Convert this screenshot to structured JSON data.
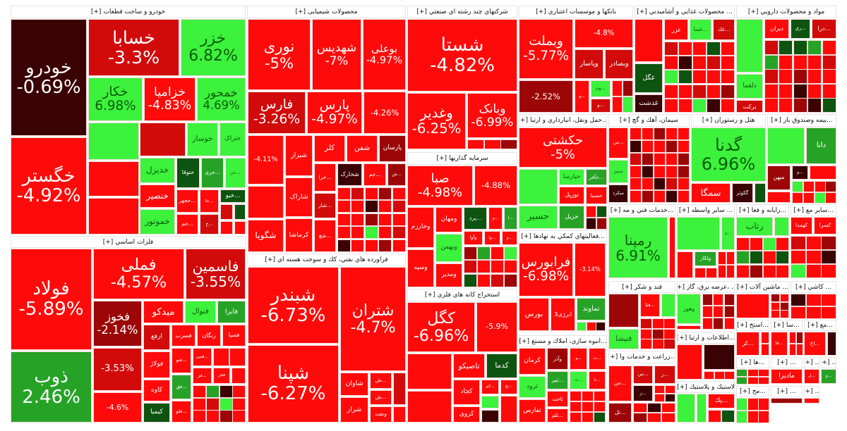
{
  "colors": {
    "R": "#ff0a0a",
    "r": "#d20a0a",
    "d": "#9c0606",
    "k": "#3a0202",
    "G": "#3cf23c",
    "g": "#26a326",
    "D": "#0d5410"
  },
  "expand_label": "[+]",
  "sectors": [
    {
      "id": "auto",
      "title": "خودرو و ساخت قطعات",
      "tiles": [
        {
          "name": "خودرو",
          "change": "-0.69%",
          "color": "k"
        },
        {
          "name": "خگستر",
          "change": "-4.92%",
          "color": "R"
        },
        {
          "name": "خسابا",
          "change": "-3.3%",
          "color": "r"
        },
        {
          "name": "خزر",
          "change": "6.82%",
          "color": "G"
        },
        {
          "name": "خکار",
          "change": "6.98%",
          "color": "G"
        },
        {
          "name": "خزامیا",
          "change": "-4.83%",
          "color": "R"
        },
        {
          "name": "خمحور",
          "change": "4.69%",
          "color": "G"
        },
        {
          "name": "خوساز",
          "change": "",
          "color": "G"
        },
        {
          "name": "ختراک",
          "change": "",
          "color": "G"
        },
        {
          "name": "خدیزل",
          "change": "",
          "color": "G"
        },
        {
          "name": "ختوقا",
          "change": "",
          "color": "D"
        },
        {
          "name": "...خری",
          "change": "",
          "color": "g"
        },
        {
          "name": "...خر",
          "change": "",
          "color": "G"
        },
        {
          "name": "خنصیر",
          "change": "",
          "color": "R"
        },
        {
          "name": "خموتور",
          "change": "",
          "color": "G"
        },
        {
          "name": "...خجهر",
          "change": "",
          "color": "R"
        },
        {
          "name": "...خا",
          "change": "",
          "color": "R"
        },
        {
          "name": "...خبو",
          "change": "",
          "color": "D"
        },
        {
          "name": "...خم",
          "change": "",
          "color": "R"
        },
        {
          "name": "...خ",
          "change": "",
          "color": "r"
        }
      ]
    },
    {
      "id": "chem",
      "title": "محصولات شیمیایی",
      "tiles": [
        {
          "name": "نوری",
          "change": "-5%",
          "color": "R"
        },
        {
          "name": "شهدیس",
          "change": "-7%",
          "color": "R"
        },
        {
          "name": "بوعلی",
          "change": "-4.97%",
          "color": "R"
        },
        {
          "name": "فارس",
          "change": "-3.26%",
          "color": "r"
        },
        {
          "name": "پارس",
          "change": "-4.97%",
          "color": "R"
        },
        {
          "name": "",
          "change": "-4.26%",
          "color": "R"
        },
        {
          "name": "",
          "change": "-4.11%",
          "color": "R"
        },
        {
          "name": "شگویا",
          "change": "",
          "color": "R"
        },
        {
          "name": "شیراز",
          "change": "",
          "color": "R"
        },
        {
          "name": "شاراک",
          "change": "",
          "color": "R"
        },
        {
          "name": "کرماشا",
          "change": "",
          "color": "R"
        },
        {
          "name": "کلر",
          "change": "",
          "color": "R"
        },
        {
          "name": "شفن",
          "change": "",
          "color": "R"
        },
        {
          "name": "پارسان",
          "change": "",
          "color": "d"
        },
        {
          "name": "...خرا",
          "change": "",
          "color": "R"
        },
        {
          "name": "شخارک",
          "change": "",
          "color": "k"
        },
        {
          "name": "...جم",
          "change": "",
          "color": "R"
        },
        {
          "name": "...ش",
          "change": "",
          "color": "d"
        },
        {
          "name": "...شار",
          "change": "",
          "color": "r"
        },
        {
          "name": "...شغ",
          "change": "",
          "color": "R"
        }
      ]
    },
    {
      "id": "refine",
      "title": "فراورده هاي نفتي، كك و سوخت هسته اي",
      "tiles": [
        {
          "name": "شبندر",
          "change": "-6.73%",
          "color": "R"
        },
        {
          "name": "شپنا",
          "change": "-6.27%",
          "color": "R"
        },
        {
          "name": "شتران",
          "change": "-4.7%",
          "color": "R"
        },
        {
          "name": "شاوان",
          "change": "",
          "color": "R"
        },
        {
          "name": "شراز",
          "change": "",
          "color": "R"
        },
        {
          "name": "...ش",
          "change": "",
          "color": "R"
        },
        {
          "name": "...ش",
          "change": "",
          "color": "R"
        },
        {
          "name": "ونفت",
          "change": "",
          "color": "R"
        }
      ]
    },
    {
      "id": "metals",
      "title": "فلزات اساسي",
      "tiles": [
        {
          "name": "فولاد",
          "change": "-5.89%",
          "color": "R"
        },
        {
          "name": "ذوب",
          "change": "2.46%",
          "color": "g"
        },
        {
          "name": "فملی",
          "change": "-4.57%",
          "color": "R"
        },
        {
          "name": "فاسمین",
          "change": "-3.55%",
          "color": "r"
        },
        {
          "name": "میدکو",
          "change": "",
          "color": "R"
        },
        {
          "name": "فنوال",
          "change": "",
          "color": "G"
        },
        {
          "name": "فایرا",
          "change": "",
          "color": "g"
        },
        {
          "name": "فخوز",
          "change": "-2.14%",
          "color": "d"
        },
        {
          "name": "",
          "change": "-3.53%",
          "color": "r"
        },
        {
          "name": "",
          "change": "-4.6%",
          "color": "R"
        },
        {
          "name": "ارفع",
          "change": "",
          "color": "r"
        },
        {
          "name": "فسرب",
          "change": "",
          "color": "R"
        },
        {
          "name": "زنگان",
          "change": "",
          "color": "R"
        },
        {
          "name": "فسپا",
          "change": "",
          "color": "R"
        },
        {
          "name": "فولاژ",
          "change": "",
          "color": "R"
        },
        {
          "name": "کاوه",
          "change": "",
          "color": "R"
        },
        {
          "name": "کیمیا",
          "change": "",
          "color": "D"
        },
        {
          "name": "...فنو",
          "change": "",
          "color": "R"
        },
        {
          "name": "...فق",
          "change": "",
          "color": "g"
        },
        {
          "name": "...فلو",
          "change": "",
          "color": "R"
        },
        {
          "name": "...فمی",
          "change": "",
          "color": "R"
        },
        {
          "name": "...فز",
          "change": "",
          "color": "R"
        },
        {
          "name": "فجر",
          "change": "",
          "color": "R"
        }
      ]
    },
    {
      "id": "multi",
      "title": "شرکتهاي چند رشته اي صنعتي",
      "tiles": [
        {
          "name": "شستا",
          "change": "-4.82%",
          "color": "R"
        },
        {
          "name": "وغدیر",
          "change": "-6.25%",
          "color": "R"
        },
        {
          "name": "وبانک",
          "change": "-6.99%",
          "color": "R"
        }
      ]
    },
    {
      "id": "invest",
      "title": "سرمايه گذاريها",
      "tiles": [
        {
          "name": "صبا",
          "change": "-4.98%",
          "color": "R"
        },
        {
          "name": "",
          "change": "-4.88%",
          "color": "R"
        },
        {
          "name": "وخارزم",
          "change": "",
          "color": "R"
        },
        {
          "name": "وسپه",
          "change": "",
          "color": "R"
        },
        {
          "name": "ومهان",
          "change": "",
          "color": "R"
        },
        {
          "name": "وبهمن",
          "change": "",
          "color": "G"
        },
        {
          "name": "ومدیر",
          "change": "",
          "color": "R"
        },
        {
          "name": "...پرد",
          "change": "",
          "color": "D"
        },
        {
          "name": "...و",
          "change": "",
          "color": "R"
        },
        {
          "name": "...ا",
          "change": "",
          "color": "g"
        },
        {
          "name": "وآوا",
          "change": "",
          "color": "R"
        },
        {
          "name": "...وا",
          "change": "",
          "color": "R"
        },
        {
          "name": "...و",
          "change": "",
          "color": "R"
        }
      ]
    },
    {
      "id": "mining",
      "title": "استخراج كانه هاي فلزي",
      "tiles": [
        {
          "name": "کگل",
          "change": "-6.96%",
          "color": "R"
        },
        {
          "name": "",
          "change": "-5.9%",
          "color": "R"
        },
        {
          "name": "تاصیکو",
          "change": "",
          "color": "R"
        },
        {
          "name": "کدما",
          "change": "",
          "color": "D"
        },
        {
          "name": "کچاد",
          "change": "",
          "color": "R"
        },
        {
          "name": "کروی",
          "change": "",
          "color": "R"
        },
        {
          "name": "...کم",
          "change": "",
          "color": "R"
        },
        {
          "name": "...نج",
          "change": "",
          "color": "R"
        }
      ]
    },
    {
      "id": "bank",
      "title": "بانكها و موسسات اعتباري",
      "tiles": [
        {
          "name": "وبملت",
          "change": "-5.77%",
          "color": "R"
        },
        {
          "name": "",
          "change": "-4.8%",
          "color": "R"
        },
        {
          "name": "وپاسار",
          "change": "",
          "color": "r"
        },
        {
          "name": "وبصادر",
          "change": "",
          "color": "r"
        },
        {
          "name": "",
          "change": "-2.52%",
          "color": "d"
        },
        {
          "name": "...و",
          "change": "",
          "color": "R"
        },
        {
          "name": "...وم",
          "change": "",
          "color": "G"
        },
        {
          "name": "...و",
          "change": "",
          "color": "r"
        }
      ]
    },
    {
      "id": "food",
      "title": "... محصولات غذايي و آشاميدني",
      "tiles": [
        {
          "name": "غگل",
          "change": "",
          "color": "D"
        },
        {
          "name": "غدشت",
          "change": "",
          "color": "k"
        },
        {
          "name": "غزر",
          "change": "",
          "color": "R"
        },
        {
          "name": "...غسا",
          "change": "",
          "color": "G"
        },
        {
          "name": "...غك",
          "change": "",
          "color": "r"
        }
      ]
    },
    {
      "id": "pharma",
      "title": "مواد و محصولات دارويي",
      "tiles": [
        {
          "name": "دلقما",
          "change": "",
          "color": "G"
        },
        {
          "name": "برکت",
          "change": "",
          "color": "r"
        },
        {
          "name": "دیران",
          "change": "",
          "color": "R"
        },
        {
          "name": "...ري",
          "change": "",
          "color": "D"
        },
        {
          "name": "...درا",
          "change": "",
          "color": "r"
        }
      ]
    },
    {
      "id": "transport",
      "title": "...حمل ونقل، انبارداري و ارتبا",
      "tiles": [
        {
          "name": "حکشتی",
          "change": "-5%",
          "color": "R"
        },
        {
          "name": "حسیر",
          "change": "",
          "color": "G"
        },
        {
          "name": "حپارسا",
          "change": "",
          "color": "G"
        },
        {
          "name": "...حآفر",
          "change": "",
          "color": "g"
        },
        {
          "name": "تورپل",
          "change": "",
          "color": "R"
        },
        {
          "name": "حسینا",
          "change": "",
          "color": "R"
        },
        {
          "name": "حریل",
          "change": "",
          "color": "g"
        }
      ]
    },
    {
      "id": "cement",
      "title": "سيمان، آهك و گچ",
      "tiles": [
        {
          "name": "...س",
          "change": "",
          "color": "R"
        },
        {
          "name": "ستیر",
          "change": "",
          "color": "G"
        },
        {
          "name": "سکرد",
          "change": "",
          "color": "k"
        }
      ]
    },
    {
      "id": "hotel",
      "title": "هتل و رستوران",
      "tiles": [
        {
          "name": "گدنا",
          "change": "6.96%",
          "color": "G"
        },
        {
          "name": "سمگا",
          "change": "",
          "color": "R"
        },
        {
          "name": "گکوثر",
          "change": "",
          "color": "k"
        }
      ]
    },
    {
      "id": "insurance",
      "title": "...بيمه وصندوق باز",
      "tiles": [
        {
          "name": "دانا",
          "change": "",
          "color": "g"
        },
        {
          "name": "میهن",
          "change": "",
          "color": "d"
        },
        {
          "name": "...و",
          "change": "",
          "color": "k"
        }
      ]
    },
    {
      "id": "support",
      "title": "...فعاليتهاي كمكي به نهادها",
      "tiles": [
        {
          "name": "فرابورس",
          "change": "-6.98%",
          "color": "R"
        },
        {
          "name": "",
          "change": "-3.14%",
          "color": "R"
        },
        {
          "name": "بورس",
          "change": "",
          "color": "R"
        },
        {
          "name": "انرژی3",
          "change": "",
          "color": "R"
        },
        {
          "name": "تماوند",
          "change": "",
          "color": "g"
        }
      ]
    },
    {
      "id": "realestate",
      "title": "...انبوه سازي، املاك و مستغ",
      "tiles": [
        {
          "name": "کرمان",
          "change": "",
          "color": "R"
        },
        {
          "name": "ثرود",
          "change": "",
          "color": "G"
        },
        {
          "name": "ثفارس",
          "change": "",
          "color": "R"
        },
        {
          "name": "وآذر",
          "change": "",
          "color": "d"
        },
        {
          "name": "...ثتیر",
          "change": "",
          "color": "g"
        },
        {
          "name": "ثاخت",
          "change": "",
          "color": "R"
        },
        {
          "name": "...ثلم",
          "change": "",
          "color": "R"
        },
        {
          "name": "...و",
          "change": "",
          "color": "R"
        },
        {
          "name": "...ث",
          "change": "",
          "color": "G"
        },
        {
          "name": "...تا",
          "change": "",
          "color": "R"
        },
        {
          "name": "...ث",
          "change": "",
          "color": "R"
        }
      ]
    },
    {
      "id": "tech",
      "title": "...خدمات فني و مه",
      "tiles": [
        {
          "name": "رمپنا",
          "change": "6.91%",
          "color": "G"
        }
      ]
    },
    {
      "id": "otherfin",
      "title": "... ساير واسطه",
      "tiles": [
        {
          "name": "...و",
          "change": "",
          "color": "G"
        },
        {
          "name": "ولکار",
          "change": "",
          "color": "g"
        }
      ]
    },
    {
      "id": "computer",
      "title": "...رايانه و فعا",
      "tiles": [
        {
          "name": "رتاب",
          "change": "",
          "color": "G"
        }
      ]
    },
    {
      "id": "othermining",
      "title": "...ساير مع",
      "tiles": [
        {
          "name": "کهمدا",
          "change": "",
          "color": "R"
        },
        {
          "name": "کسرا",
          "change": "",
          "color": "R"
        }
      ]
    },
    {
      "id": "sugar",
      "title": "قند و شكر",
      "tiles": [
        {
          "name": "...قتا",
          "change": "",
          "color": "R"
        },
        {
          "name": "قنیشا",
          "change": "",
          "color": "G"
        }
      ]
    },
    {
      "id": "agri",
      "title": "...زراعت و خدمات وا",
      "tiles": [
        {
          "name": "...س",
          "change": "",
          "color": "R"
        },
        {
          "name": "...تل",
          "change": "",
          "color": "d"
        },
        {
          "name": "...س",
          "change": "",
          "color": "r"
        },
        {
          "name": "...ز",
          "change": "",
          "color": "r"
        },
        {
          "name": "...ز",
          "change": "",
          "color": "k"
        }
      ]
    },
    {
      "id": "power",
      "title": "... ،عرضه برق، گاز",
      "tiles": [
        {
          "name": "وهور",
          "change": "",
          "color": "G"
        }
      ]
    },
    {
      "id": "machinery",
      "title": "... ماشين آلات",
      "tiles": []
    },
    {
      "id": "tile",
      "title": "... كاشي",
      "tiles": []
    },
    {
      "id": "telecom",
      "title": "...اطلاعات و ارتبا",
      "tiles": []
    },
    {
      "id": "rubber",
      "title": "لاستيك و پلاستيك",
      "tiles": [
        {
          "name": "...پك",
          "change": "",
          "color": "R"
        }
      ]
    },
    {
      "id": "s1",
      "title": "...استخ",
      "tiles": [
        {
          "name": "...کز",
          "change": "",
          "color": "R"
        }
      ]
    },
    {
      "id": "s2",
      "title": "...سا",
      "tiles": [
        {
          "name": "...فا",
          "change": "",
          "color": "R"
        }
      ]
    },
    {
      "id": "s3",
      "title": "...مع",
      "tiles": [
        {
          "name": "...اخ",
          "change": "",
          "color": "R"
        }
      ]
    },
    {
      "id": "s4",
      "title": "...ها",
      "tiles": []
    },
    {
      "id": "s5",
      "title": "...",
      "tiles": [
        {
          "name": "مادیرا",
          "change": "",
          "color": "R"
        }
      ]
    },
    {
      "id": "s6",
      "title": "...",
      "tiles": [
        {
          "name": "...ل",
          "change": "",
          "color": "R"
        }
      ]
    },
    {
      "id": "s7",
      "title": "...",
      "tiles": [
        {
          "name": "...و",
          "change": "",
          "color": "g"
        }
      ]
    },
    {
      "id": "s8",
      "title": "...مح",
      "tiles": []
    },
    {
      "id": "s9",
      "title": "...",
      "tiles": []
    },
    {
      "id": "s10",
      "title": "...",
      "tiles": []
    }
  ]
}
